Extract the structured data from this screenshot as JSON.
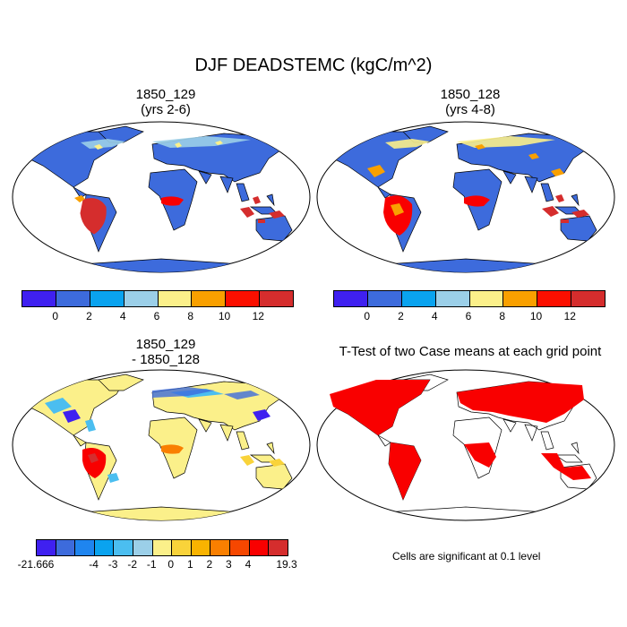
{
  "title": "DJF DEADSTEMC (kgC/m^2)",
  "panels": [
    {
      "title1": "1850_129",
      "title2": "(yrs 2-6)"
    },
    {
      "title1": "1850_128",
      "title2": "(yrs 4-8)"
    },
    {
      "title1": "1850_129",
      "title2": "- 1850_128"
    },
    {
      "title1": "T-Test of two Case means at each grid point",
      "title2": ""
    }
  ],
  "colorbar_abs": {
    "colors": [
      "#3f20f0",
      "#3d6bdc",
      "#0aa3ef",
      "#9bcfe8",
      "#fbf08a",
      "#f9a000",
      "#fb0f00",
      "#d52d2d"
    ],
    "labels": [
      "0",
      "2",
      "4",
      "6",
      "8",
      "10",
      "12"
    ]
  },
  "colorbar_diff": {
    "colors": [
      "#3f20f0",
      "#3d6bdc",
      "#1f85ef",
      "#0aa3ef",
      "#4bbef0",
      "#9bcfe8",
      "#fbf08a",
      "#f9d33a",
      "#f9b300",
      "#f97f00",
      "#f64700",
      "#f90000",
      "#d52d2d"
    ],
    "labels": [
      "-21.666",
      "-4",
      "-3",
      "-2",
      "-1",
      "0",
      "1",
      "2",
      "3",
      "4",
      "19.3"
    ]
  },
  "significance_note": "Cells are significant at 0.1 level",
  "colors": {
    "land_low": "#3d6bdc",
    "land_diff": "#fbf08a",
    "sig": "#f90000"
  }
}
